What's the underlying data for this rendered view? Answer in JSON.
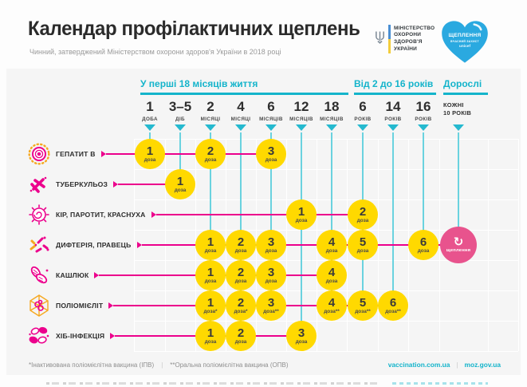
{
  "header": {
    "title": "Календар профілактичних щеплень",
    "subtitle": "Чинний, затверджений Міністерством охорони здоров'я України в 2018 році",
    "ministry_lines": [
      "МІНІСТЕРСТВО",
      "ОХОРОНИ",
      "ЗДОРОВ'Я",
      "УКРАЇНИ"
    ],
    "heart": {
      "line1": "ЩЕПЛЕННЯ",
      "line2": "ВЧАСНИЙ ЗАХИСТ",
      "line3": "unicef"
    }
  },
  "colors": {
    "cyan": "#14b4cb",
    "magenta": "#ec008c",
    "dose_yellow": "#ffd900",
    "revac_pink": "#e8538d",
    "heart_blue": "#2aa9e0"
  },
  "timeline": {
    "groups": [
      {
        "label": "У перші 18 місяців життя"
      },
      {
        "label": "Від 2 до 16 років"
      },
      {
        "label": "Дорослі"
      }
    ],
    "columns": [
      {
        "big": "1",
        "small": "ДОБА",
        "group": 0
      },
      {
        "big": "3–5",
        "small": "ДІБ",
        "group": 0
      },
      {
        "big": "2",
        "small": "МІСЯЦІ",
        "group": 0
      },
      {
        "big": "4",
        "small": "МІСЯЦІ",
        "group": 0
      },
      {
        "big": "6",
        "small": "МІСЯЦІВ",
        "group": 0
      },
      {
        "big": "12",
        "small": "МІСЯЦІВ",
        "group": 0
      },
      {
        "big": "18",
        "small": "МІСЯЦІВ",
        "group": 0
      },
      {
        "big": "6",
        "small": "РОКІВ",
        "group": 1
      },
      {
        "big": "14",
        "small": "РОКІВ",
        "group": 1
      },
      {
        "big": "16",
        "small": "РОКІВ",
        "group": 1
      },
      {
        "big": "КОЖНІ",
        "small": "10 РОКІВ",
        "group": 2,
        "style": "stacked"
      }
    ]
  },
  "vaccines": [
    {
      "name": "ГЕПАТИТ В",
      "icon": "hepatitis-b-virus-icon",
      "iconKey": "hep",
      "doses": [
        {
          "col": 0,
          "n": "1",
          "sub": "доза"
        },
        {
          "col": 2,
          "n": "2",
          "sub": "доза"
        },
        {
          "col": 4,
          "n": "3",
          "sub": "доза"
        }
      ]
    },
    {
      "name": "ТУБЕРКУЛЬОЗ",
      "icon": "tuberculosis-bacteria-icon",
      "iconKey": "tb",
      "doses": [
        {
          "col": 1,
          "n": "1",
          "sub": "доза"
        }
      ]
    },
    {
      "name": "КІР, ПАРОТИТ, КРАСНУХА",
      "icon": "measles-virus-icon",
      "iconKey": "measles",
      "doses": [
        {
          "col": 5,
          "n": "1",
          "sub": "доза"
        },
        {
          "col": 7,
          "n": "2",
          "sub": "доза"
        }
      ]
    },
    {
      "name": "ДИФТЕРІЯ, ПРАВЕЦЬ",
      "icon": "diphtheria-bacteria-icon",
      "iconKey": "diph",
      "doses": [
        {
          "col": 2,
          "n": "1",
          "sub": "доза"
        },
        {
          "col": 3,
          "n": "2",
          "sub": "доза"
        },
        {
          "col": 4,
          "n": "3",
          "sub": "доза"
        },
        {
          "col": 6,
          "n": "4",
          "sub": "доза"
        },
        {
          "col": 7,
          "n": "5",
          "sub": "доза"
        },
        {
          "col": 9,
          "n": "6",
          "sub": "доза"
        },
        {
          "col": 10,
          "type": "revac",
          "label": "щеплення"
        }
      ]
    },
    {
      "name": "КАШЛЮК",
      "icon": "pertussis-bacteria-icon",
      "iconKey": "pert",
      "doses": [
        {
          "col": 2,
          "n": "1",
          "sub": "доза"
        },
        {
          "col": 3,
          "n": "2",
          "sub": "доза"
        },
        {
          "col": 4,
          "n": "3",
          "sub": "доза"
        },
        {
          "col": 6,
          "n": "4",
          "sub": "доза"
        }
      ]
    },
    {
      "name": "ПОЛІОМІЄЛІТ",
      "icon": "polio-virus-icon",
      "iconKey": "polio",
      "doses": [
        {
          "col": 2,
          "n": "1",
          "sub": "доза*"
        },
        {
          "col": 3,
          "n": "2",
          "sub": "доза*"
        },
        {
          "col": 4,
          "n": "3",
          "sub": "доза**"
        },
        {
          "col": 6,
          "n": "4",
          "sub": "доза**"
        },
        {
          "col": 7,
          "n": "5",
          "sub": "доза**"
        },
        {
          "col": 8,
          "n": "6",
          "sub": "доза**"
        }
      ]
    },
    {
      "name": "ХІБ-ІНФЕКЦІЯ",
      "icon": "hib-bacteria-icon",
      "iconKey": "hib",
      "doses": [
        {
          "col": 2,
          "n": "1",
          "sub": "доза"
        },
        {
          "col": 3,
          "n": "2",
          "sub": "доза"
        },
        {
          "col": 5,
          "n": "3",
          "sub": "доза"
        }
      ]
    }
  ],
  "footer": {
    "note1": "*Інактивована поліомієлітна вакцина (ІПВ)",
    "note2": "**Оральна поліомієлітна вакцина (ОПВ)",
    "link1": "vaccination.com.ua",
    "link2": "moz.gov.ua"
  }
}
